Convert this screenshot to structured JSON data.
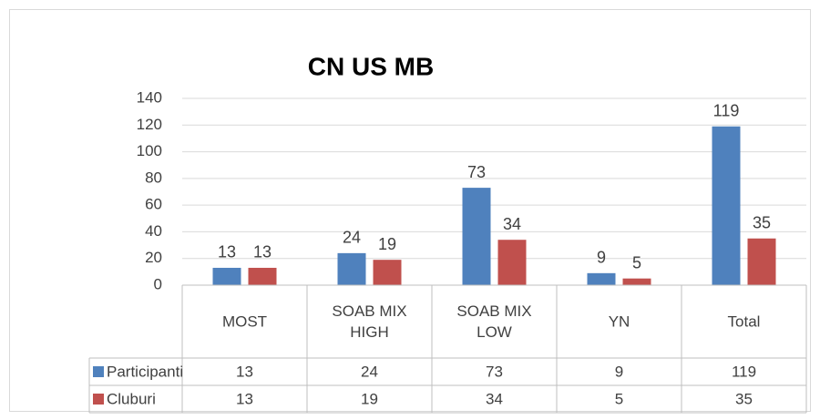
{
  "chart_data": {
    "type": "bar",
    "title": "CN US MB",
    "categories": [
      "MOST",
      "SOAB MIX HIGH",
      "SOAB MIX LOW",
      "YN",
      "Total"
    ],
    "series": [
      {
        "name": "Participanti",
        "color": "#4f81bd",
        "values": [
          13,
          24,
          73,
          9,
          119
        ]
      },
      {
        "name": "Cluburi",
        "color": "#c0504d",
        "values": [
          13,
          19,
          34,
          5,
          35
        ]
      }
    ],
    "ylim": [
      0,
      140
    ],
    "yticks": [
      0,
      20,
      40,
      60,
      80,
      100,
      120,
      140
    ],
    "grid": true,
    "data_table": true
  }
}
